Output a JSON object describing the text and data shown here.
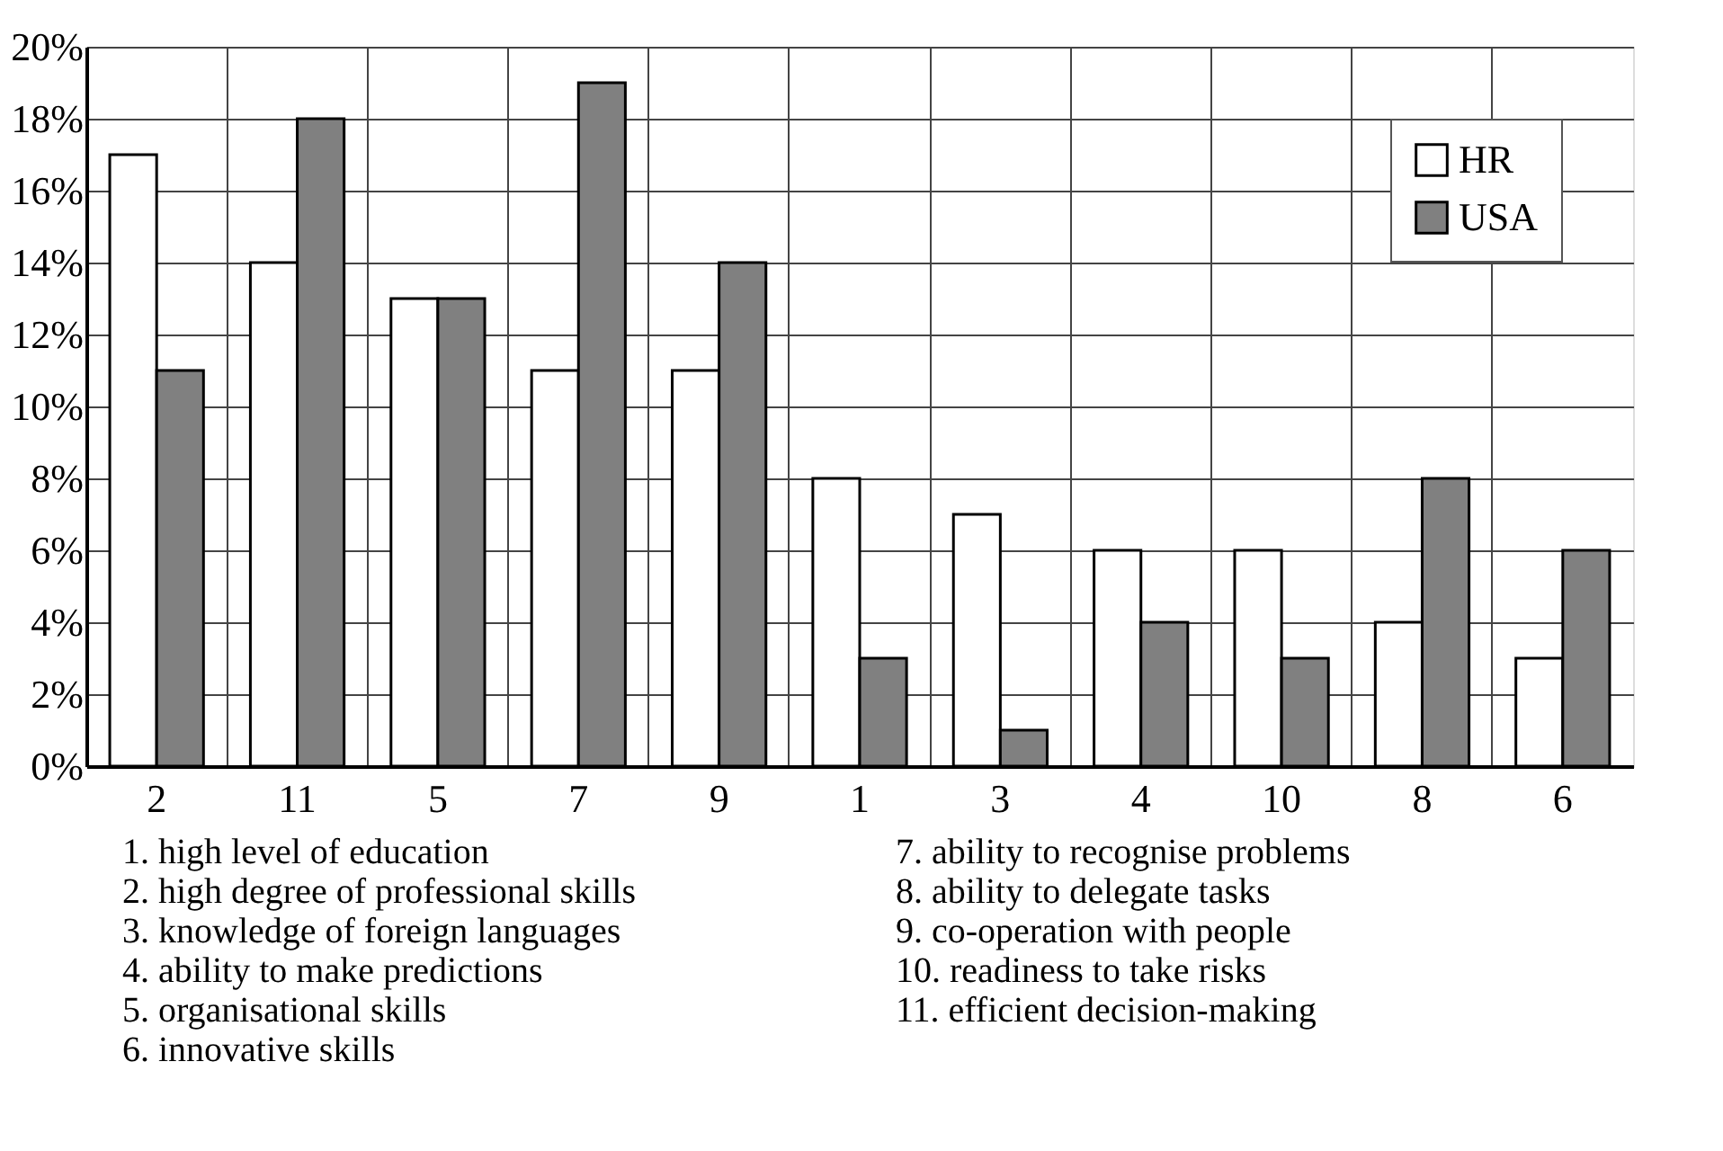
{
  "chart_data": {
    "type": "bar",
    "categories": [
      "2",
      "11",
      "5",
      "7",
      "9",
      "1",
      "3",
      "4",
      "10",
      "8",
      "6"
    ],
    "series": [
      {
        "name": "HR",
        "color": "#ffffff",
        "values": [
          17,
          14,
          13,
          11,
          11,
          8,
          7,
          6,
          6,
          4,
          3
        ]
      },
      {
        "name": "USA",
        "color": "#808080",
        "values": [
          11,
          18,
          13,
          19,
          14,
          3,
          1,
          4,
          3,
          8,
          6
        ]
      }
    ],
    "ylim": [
      0,
      20
    ],
    "yticks": [
      {
        "value": 0,
        "label": "0%"
      },
      {
        "value": 2,
        "label": "2%"
      },
      {
        "value": 4,
        "label": "4%"
      },
      {
        "value": 6,
        "label": "6%"
      },
      {
        "value": 8,
        "label": "8%"
      },
      {
        "value": 10,
        "label": "10%"
      },
      {
        "value": 12,
        "label": "12%"
      },
      {
        "value": 14,
        "label": "14%"
      },
      {
        "value": 16,
        "label": "16%"
      },
      {
        "value": 18,
        "label": "18%"
      },
      {
        "value": 20,
        "label": "20%"
      }
    ],
    "grid": true,
    "legend": "top right",
    "annotations": [
      "1. high level of education",
      "2. high degree of professional skills",
      "3. knowledge of foreign languages",
      "4. ability to make predictions",
      "5. organisational skills",
      "6. innovative skills",
      "7. ability to recognise problems",
      "8. ability to delegate tasks",
      "9. co-operation with people",
      "10. readiness to take risks",
      "11. efficient decision-making"
    ]
  }
}
